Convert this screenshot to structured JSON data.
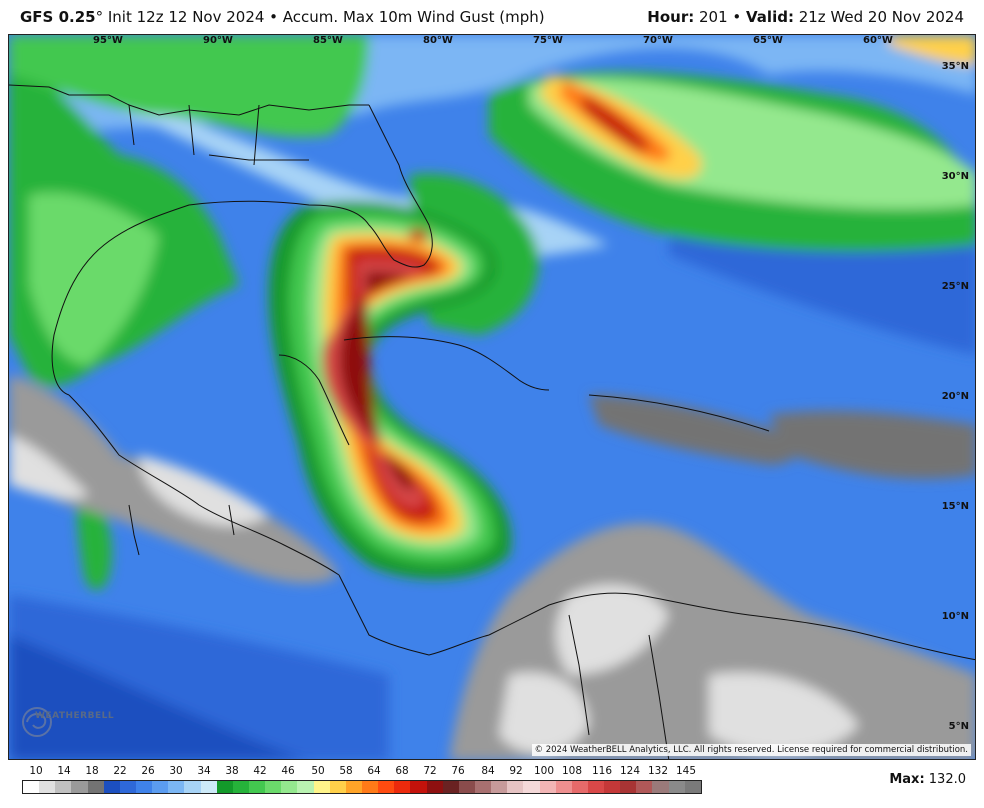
{
  "header": {
    "model": "GFS 0.25",
    "degree": "°",
    "init": " Init 12z 12 Nov 2024 • Accum. Max 10m Wind Gust (mph)",
    "hour_label": "Hour:",
    "hour_value": " 201",
    "valid_sep": " • ",
    "valid_label": "Valid:",
    "valid_value": " 21z Wed 20 Nov 2024"
  },
  "map": {
    "longitude_labels": [
      "95°W",
      "90°W",
      "85°W",
      "80°W",
      "75°W",
      "70°W",
      "65°W",
      "60°W"
    ],
    "latitude_labels": [
      "35°N",
      "30°N",
      "25°N",
      "20°N",
      "15°N",
      "10°N",
      "5°N"
    ],
    "copyright": "© 2024 WeatherBELL Analytics, LLC. All rights reserved. License required for commercial distribution.",
    "logo_text": "WEATHERBELL",
    "storm_max_mph": 132.0
  },
  "legend": {
    "ticks": [
      "10",
      "14",
      "18",
      "22",
      "26",
      "30",
      "34",
      "38",
      "42",
      "46",
      "50",
      "58",
      "64",
      "68",
      "72",
      "76",
      "84",
      "92",
      "100",
      "108",
      "116",
      "124",
      "132",
      "145"
    ],
    "colors": [
      "#ffffff",
      "#e0e0e0",
      "#c0c0c0",
      "#9a9a9a",
      "#737373",
      "#1c4fbf",
      "#2e68d8",
      "#3f82ea",
      "#5b9cf0",
      "#7bb6f4",
      "#a7d3f6",
      "#cdeaf8",
      "#139a2a",
      "#26b23a",
      "#43c84f",
      "#6bda6b",
      "#94e88e",
      "#b9f2b1",
      "#fff48a",
      "#ffd04a",
      "#ffa428",
      "#ff7a18",
      "#ff4b10",
      "#ec2a0c",
      "#c4120b",
      "#8e1010",
      "#6a2222",
      "#8a4c4c",
      "#a87070",
      "#c79a9a",
      "#e6c3c3",
      "#f4d8d8",
      "#f2b5b5",
      "#ee8f8f",
      "#e66a6a",
      "#d84848",
      "#c43838",
      "#a83434",
      "#b05858",
      "#9a7a7a",
      "#8a8a8a",
      "#7a7a7a"
    ],
    "max_label": "Max:",
    "max_value": " 132.0"
  }
}
